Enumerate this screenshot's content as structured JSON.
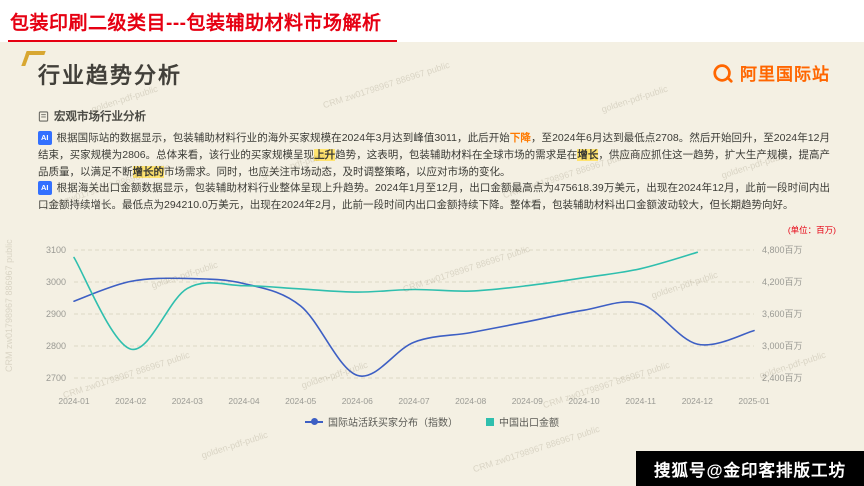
{
  "topbar": {
    "title": "包装印刷二级类目---包装辅助材料市场解析"
  },
  "slide": {
    "title": "行业趋势分析",
    "logo_text": "阿里国际站",
    "section_label": "宏观市场行业分析",
    "ai_badge": "AI",
    "paragraph1_segments": [
      {
        "text": "根据国际站的数据显示，包装辅助材料行业的海外买家规模在2024年3月达到峰值3011，此后开始",
        "style": "normal"
      },
      {
        "text": "下降",
        "style": "orange"
      },
      {
        "text": "，至2024年6月达到最低点2708。然后开始回升，至2024年12月结束，买家规模为2806。总体来看，该行业的买家规模呈现",
        "style": "normal"
      },
      {
        "text": "上升",
        "style": "highlight"
      },
      {
        "text": "趋势，这表明，包装辅助材料在全球市场的需求是在",
        "style": "normal"
      },
      {
        "text": "增长",
        "style": "highlight"
      },
      {
        "text": "，供应商应抓住这一趋势，扩大生产规模，提高产品质量，以满足不断",
        "style": "normal"
      },
      {
        "text": "增长的",
        "style": "highlight"
      },
      {
        "text": "市场需求。同时，也应关注市场动态，及时调整策略，以应对市场的变化。",
        "style": "normal"
      }
    ],
    "paragraph2_segments": [
      {
        "text": "根据海关出口金额数据显示，包装辅助材料行业整体呈现上升趋势。2024年1月至12月，出口金额最高点为475618.39万美元，出现在2024年12月，此前一段时间内出口金额持续增长。最低点为294210.0万美元，出现在2024年2月，此前一段时间内出口金额持续下降。整体看，包装辅助材料出口金额波动较大，但长期趋势向好。",
        "style": "normal"
      }
    ]
  },
  "watermarks": [
    "golden-pdf-public",
    "CRM zw01798967 886967 public"
  ],
  "banner": "搜狐号@金印客排版工坊",
  "colors": {
    "title_red": "#e60012",
    "slide_background": "#f4f0e3",
    "gold_accent": "#d8a731",
    "logo_orange": "#ff6600",
    "buyers_line_blue": "#3d5fc4",
    "export_line_teal": "#2fbfae",
    "highlight_yellow": "#ffe36e",
    "ai_badge_blue": "#3370ff"
  },
  "chart_data": {
    "type": "line",
    "title": "",
    "unit_label": "(单位：百万)",
    "grid": "horizontal-dashed",
    "legend_position": "bottom-center",
    "categories": [
      "2024-01",
      "2024-02",
      "2024-03",
      "2024-04",
      "2024-05",
      "2024-06",
      "2024-07",
      "2024-08",
      "2024-09",
      "2024-10",
      "2024-11",
      "2024-12",
      "2025-01"
    ],
    "left_axis": {
      "min": 2700,
      "max": 3100,
      "tick_labels": [
        "3100",
        "3000",
        "2900",
        "2800",
        "2700"
      ]
    },
    "right_axis": {
      "min": 2400,
      "max": 4800,
      "tick_labels": [
        "4,800百万",
        "4,200百万",
        "3,600百万",
        "3,000百万",
        "2,400百万"
      ]
    },
    "series": [
      {
        "name": "国际站活跃买家分布（指数）",
        "axis": "left",
        "color": "#3d5fc4",
        "marker": "line-dot",
        "values": [
          2940,
          3002,
          3011,
          2995,
          2925,
          2708,
          2812,
          2842,
          2876,
          2912,
          2932,
          2806,
          2848
        ]
      },
      {
        "name": "中国出口金额",
        "axis": "right",
        "color": "#2fbfae",
        "marker": "square",
        "values": [
          4660,
          2942,
          4080,
          4130,
          4070,
          4010,
          4060,
          4030,
          4130,
          4280,
          4450,
          4756,
          null
        ]
      }
    ]
  }
}
